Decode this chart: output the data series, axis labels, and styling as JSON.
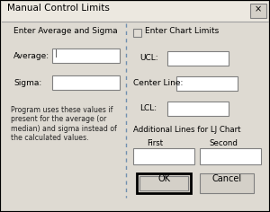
{
  "title": "Manual Control Limits",
  "bg_color": "#d4d0c8",
  "content_bg": "#e8e4de",
  "white": "#ffffff",
  "border_dark": "#404040",
  "border_mid": "#808080",
  "border_light": "#c0c0c0",
  "divider_color": "#7090b0",
  "section_left_title": "Enter Average and Sigma",
  "label_average": "Average:",
  "label_sigma": "Sigma:",
  "info_text": "Program uses these values if\npresent for the average (or\nmedian) and sigma instead of\nthe calculated values.",
  "checkbox_label": "Enter Chart Limits",
  "label_ucl": "UCL:",
  "label_centerline": "Center Line:",
  "label_lcl": "LCL:",
  "additional_title": "Additional Lines for LJ Chart",
  "label_first": "First",
  "label_second": "Second",
  "btn_ok": "OK",
  "btn_cancel": "Cancel"
}
